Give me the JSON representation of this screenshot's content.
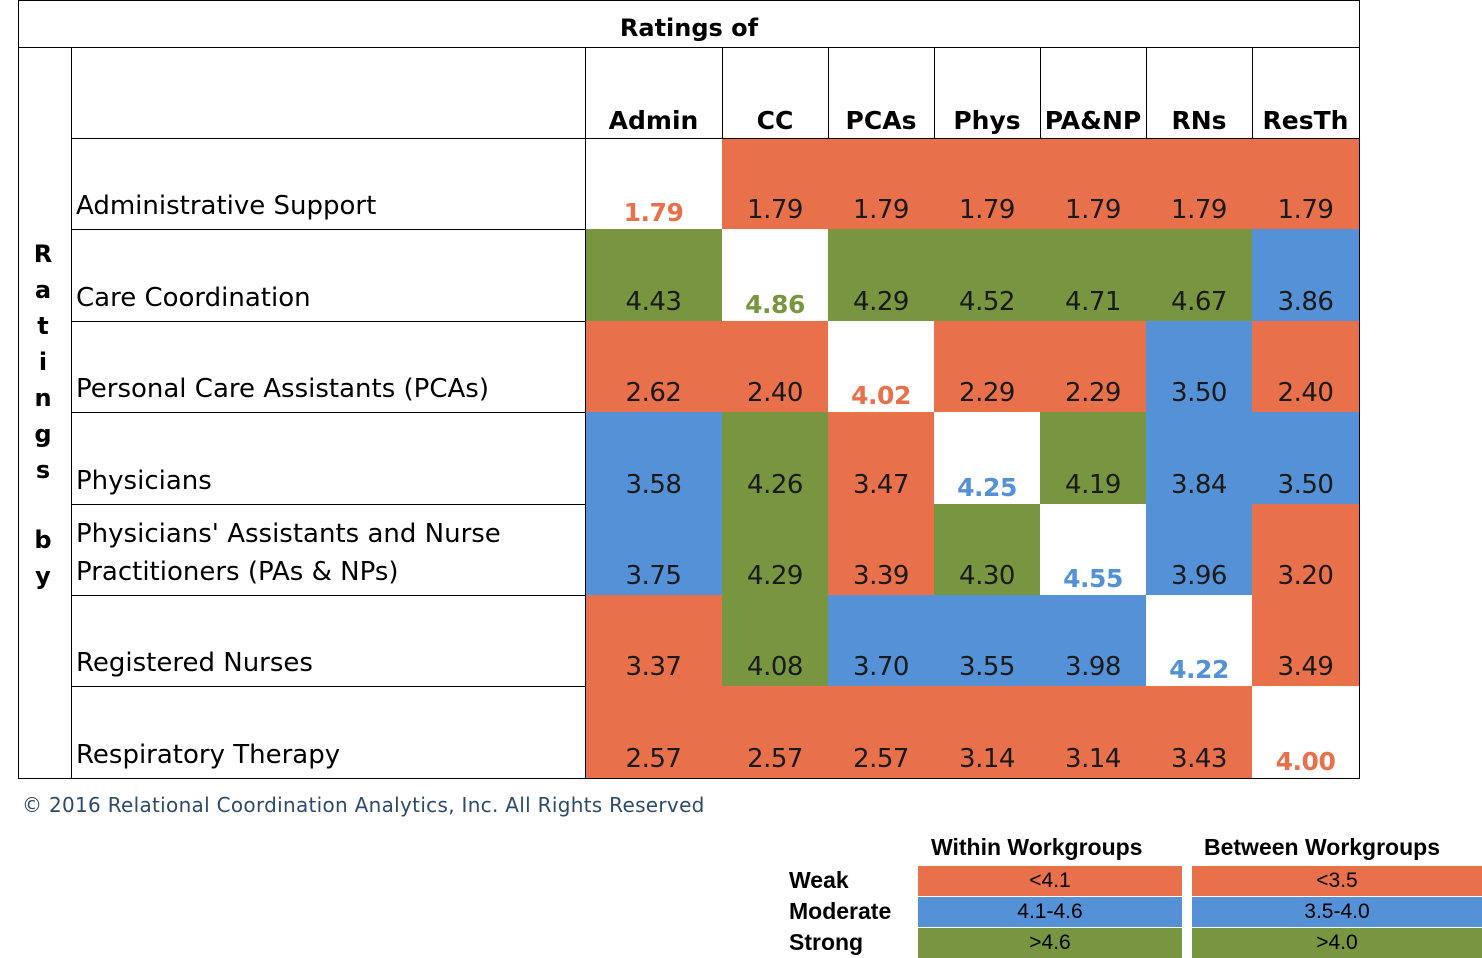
{
  "chart_data": {
    "type": "heatmap",
    "title": "Ratings of",
    "row_axis_label": "Ratings by",
    "columns": [
      "Admin",
      "CC",
      "PCAs",
      "Phys",
      "PA&NP",
      "RNs",
      "ResTh"
    ],
    "rows": [
      "Administrative Support",
      "Care Coordination",
      "Personal Care Assistants (PCAs)",
      "Physicians",
      "Physicians' Assistants and Nurse Practitioners (PAs & NPs)",
      "Registered Nurses",
      "Respiratory Therapy"
    ],
    "row_label_lines": [
      [
        "Administrative Support"
      ],
      [
        "Care Coordination"
      ],
      [
        "Personal Care Assistants (PCAs)"
      ],
      [
        "Physicians"
      ],
      [
        "Physicians' Assistants and Nurse",
        "Practitioners (PAs & NPs)"
      ],
      [
        "Registered Nurses"
      ],
      [
        "Respiratory Therapy"
      ]
    ],
    "values": [
      [
        "1.79",
        "1.79",
        "1.79",
        "1.79",
        "1.79",
        "1.79",
        "1.79"
      ],
      [
        "4.43",
        "4.86",
        "4.29",
        "4.52",
        "4.71",
        "4.67",
        "3.86"
      ],
      [
        "2.62",
        "2.40",
        "4.02",
        "2.29",
        "2.29",
        "3.50",
        "2.40"
      ],
      [
        "3.58",
        "4.26",
        "3.47",
        "4.25",
        "4.19",
        "3.84",
        "3.50"
      ],
      [
        "3.75",
        "4.29",
        "3.39",
        "4.30",
        "4.55",
        "3.96",
        "3.20"
      ],
      [
        "3.37",
        "4.08",
        "3.70",
        "3.55",
        "3.98",
        "4.22",
        "3.49"
      ],
      [
        "2.57",
        "2.57",
        "2.57",
        "3.14",
        "3.14",
        "3.43",
        "4.00"
      ]
    ],
    "category_colors": {
      "Weak": "#e8704a",
      "Moderate": "#5591d6",
      "Strong": "#77963f"
    },
    "diagonal_background": "#ffffff"
  },
  "copyright": "© 2016 Relational Coordination Analytics, Inc. All Rights Reserved",
  "legend": {
    "headers": [
      "Within Workgroups",
      "Between Workgroups"
    ],
    "rows": [
      {
        "label": "Weak",
        "within": "<4.1",
        "between": "<3.5",
        "color": "#e8704a"
      },
      {
        "label": "Moderate",
        "within": "4.1-4.6",
        "between": "3.5-4.0",
        "color": "#5591d6"
      },
      {
        "label": "Strong",
        "within": ">4.6",
        "between": ">4.0",
        "color": "#77963f"
      }
    ]
  }
}
